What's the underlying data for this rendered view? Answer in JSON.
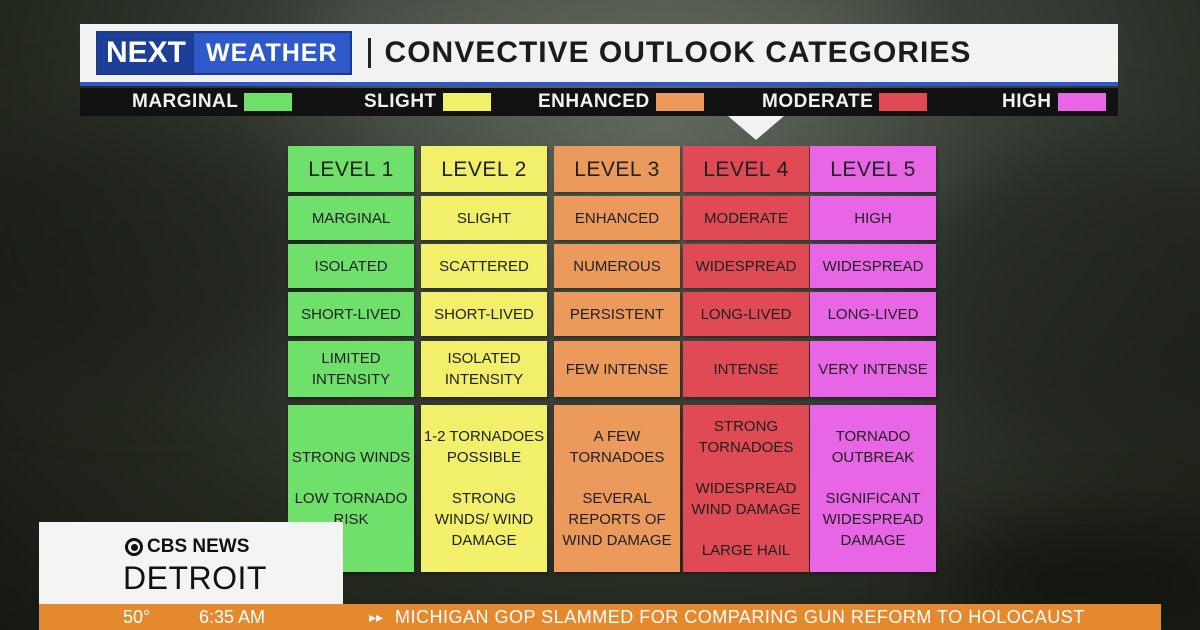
{
  "header": {
    "logo_next": "NEXT",
    "logo_weather": "WEATHER",
    "title": "CONVECTIVE OUTLOOK CATEGORIES"
  },
  "legend": [
    {
      "label": "MARGINAL",
      "color": "#6fe06a"
    },
    {
      "label": "SLIGHT",
      "color": "#f2ef6a"
    },
    {
      "label": "ENHANCED",
      "color": "#eb9a5c"
    },
    {
      "label": "MODERATE",
      "color": "#df4a55"
    },
    {
      "label": "HIGH",
      "color": "#e866e6"
    }
  ],
  "levels": [
    {
      "color": "#6fe06a",
      "header": "LEVEL 1",
      "category": "MARGINAL",
      "coverage": "ISOLATED",
      "duration": "SHORT-LIVED",
      "intensity": [
        "LIMITED",
        "INTENSITY"
      ],
      "hazards_a": [
        "STRONG WINDS"
      ],
      "hazards_b": [
        "LOW TORNADO",
        "RISK"
      ]
    },
    {
      "color": "#f2ef6a",
      "header": "LEVEL 2",
      "category": "SLIGHT",
      "coverage": "SCATTERED",
      "duration": "SHORT-LIVED",
      "intensity": [
        "ISOLATED",
        "INTENSITY"
      ],
      "hazards_a": [
        "1-2 TORNADOES",
        "POSSIBLE"
      ],
      "hazards_b": [
        "STRONG",
        "WINDS/ WIND",
        "DAMAGE"
      ]
    },
    {
      "color": "#eb9a5c",
      "header": "LEVEL 3",
      "category": "ENHANCED",
      "coverage": "NUMEROUS",
      "duration": "PERSISTENT",
      "intensity": [
        "FEW INTENSE"
      ],
      "hazards_a": [
        "A FEW",
        "TORNADOES"
      ],
      "hazards_b": [
        "SEVERAL",
        "REPORTS OF",
        "WIND DAMAGE"
      ]
    },
    {
      "color": "#df4a55",
      "header": "LEVEL 4",
      "category": "MODERATE",
      "coverage": "WIDESPREAD",
      "duration": "LONG-LIVED",
      "intensity": [
        "INTENSE"
      ],
      "hazards_a": [
        "STRONG",
        "TORNADOES"
      ],
      "hazards_b": [
        "WIDESPREAD",
        "WIND DAMAGE"
      ],
      "hazards_c": [
        "LARGE HAIL"
      ]
    },
    {
      "color": "#e866e6",
      "header": "LEVEL 5",
      "category": "HIGH",
      "coverage": "WIDESPREAD",
      "duration": "LONG-LIVED",
      "intensity": [
        "VERY INTENSE"
      ],
      "hazards_a": [
        "TORNADO",
        "OUTBREAK"
      ],
      "hazards_b": [
        "SIGNIFICANT",
        "WIDESPREAD",
        "DAMAGE"
      ]
    }
  ],
  "station": {
    "network": "CBS NEWS",
    "city": "DETROIT"
  },
  "ticker": {
    "temperature": "50°",
    "time": "6:35 AM",
    "arrow": "▸▸",
    "headline": "MICHIGAN GOP SLAMMED FOR COMPARING GUN REFORM TO HOLOCAUST"
  }
}
